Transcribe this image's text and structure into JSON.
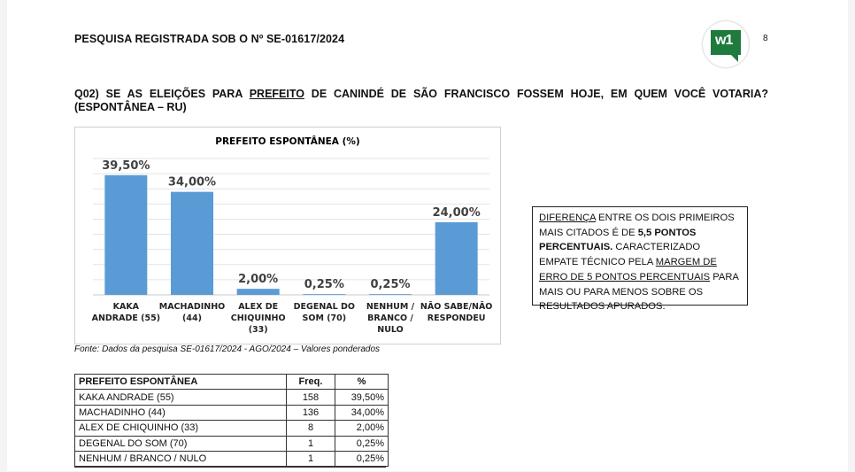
{
  "header": {
    "registration": "PESQUISA REGISTRADA SOB O Nº SE-01617/2024",
    "logo_text": "w1",
    "page_number": "8"
  },
  "question": {
    "part1": "Q02) SE AS ELEIÇÕES PARA ",
    "underlined": "PREFEITO",
    "part2": " DE CANINDÉ DE SÃO FRANCISCO FOSSEM HOJE, EM QUEM VOCÊ VOTARIA?",
    "line2": "(ESPONTÂNEA – RU)"
  },
  "chart_data": {
    "type": "bar",
    "title": "PREFEITO ESPONTÂNEA (%)",
    "categories": [
      [
        "KAKA",
        "ANDRADE (55)"
      ],
      [
        "MACHADINHO",
        "(44)"
      ],
      [
        "ALEX DE",
        "CHIQUINHO",
        "(33)"
      ],
      [
        "DEGENAL DO",
        "SOM (70)"
      ],
      [
        "NENHUM /",
        "BRANCO /",
        "NULO"
      ],
      [
        "NÃO SABE/NÃO",
        "RESPONDEU"
      ]
    ],
    "values": [
      39.5,
      34.0,
      2.0,
      0.25,
      0.25,
      24.0
    ],
    "data_labels": [
      "39,50%",
      "34,00%",
      "2,00%",
      "0,25%",
      "0,25%",
      "24,00%"
    ],
    "ylim": [
      0,
      45
    ],
    "grid": true,
    "bar_color": "#5b9bd5"
  },
  "source": "Fonte: Dados da pesquisa  SE-01617/2024 - AGO/2024 – Valores ponderados",
  "note": {
    "diferenca": "DIFERENÇA",
    "t1": " ENTRE OS DOIS PRIMEIROS MAIS CITADOS É DE ",
    "bold": "5,5 PONTOS PERCENTUAIS.",
    "t2": " CARACTERIZADO EMPATE TÉCNICO PELA ",
    "margem": "MARGEM DE ERRO DE 5 PONTOS PERCENTUAIS",
    "t3": " PARA MAIS OU PARA MENOS SOBRE OS RESULTADOS APURADOS."
  },
  "table": {
    "headers": [
      "PREFEITO ESPONTÂNEA",
      "Freq.",
      "%"
    ],
    "rows": [
      [
        "KAKA ANDRADE (55)",
        "158",
        "39,50%"
      ],
      [
        "MACHADINHO (44)",
        "136",
        "34,00%"
      ],
      [
        "ALEX DE CHIQUINHO (33)",
        "8",
        "2,00%"
      ],
      [
        "DEGENAL DO SOM (70)",
        "1",
        "0,25%"
      ],
      [
        "NENHUM / BRANCO / NULO",
        "1",
        "0,25%"
      ]
    ]
  }
}
